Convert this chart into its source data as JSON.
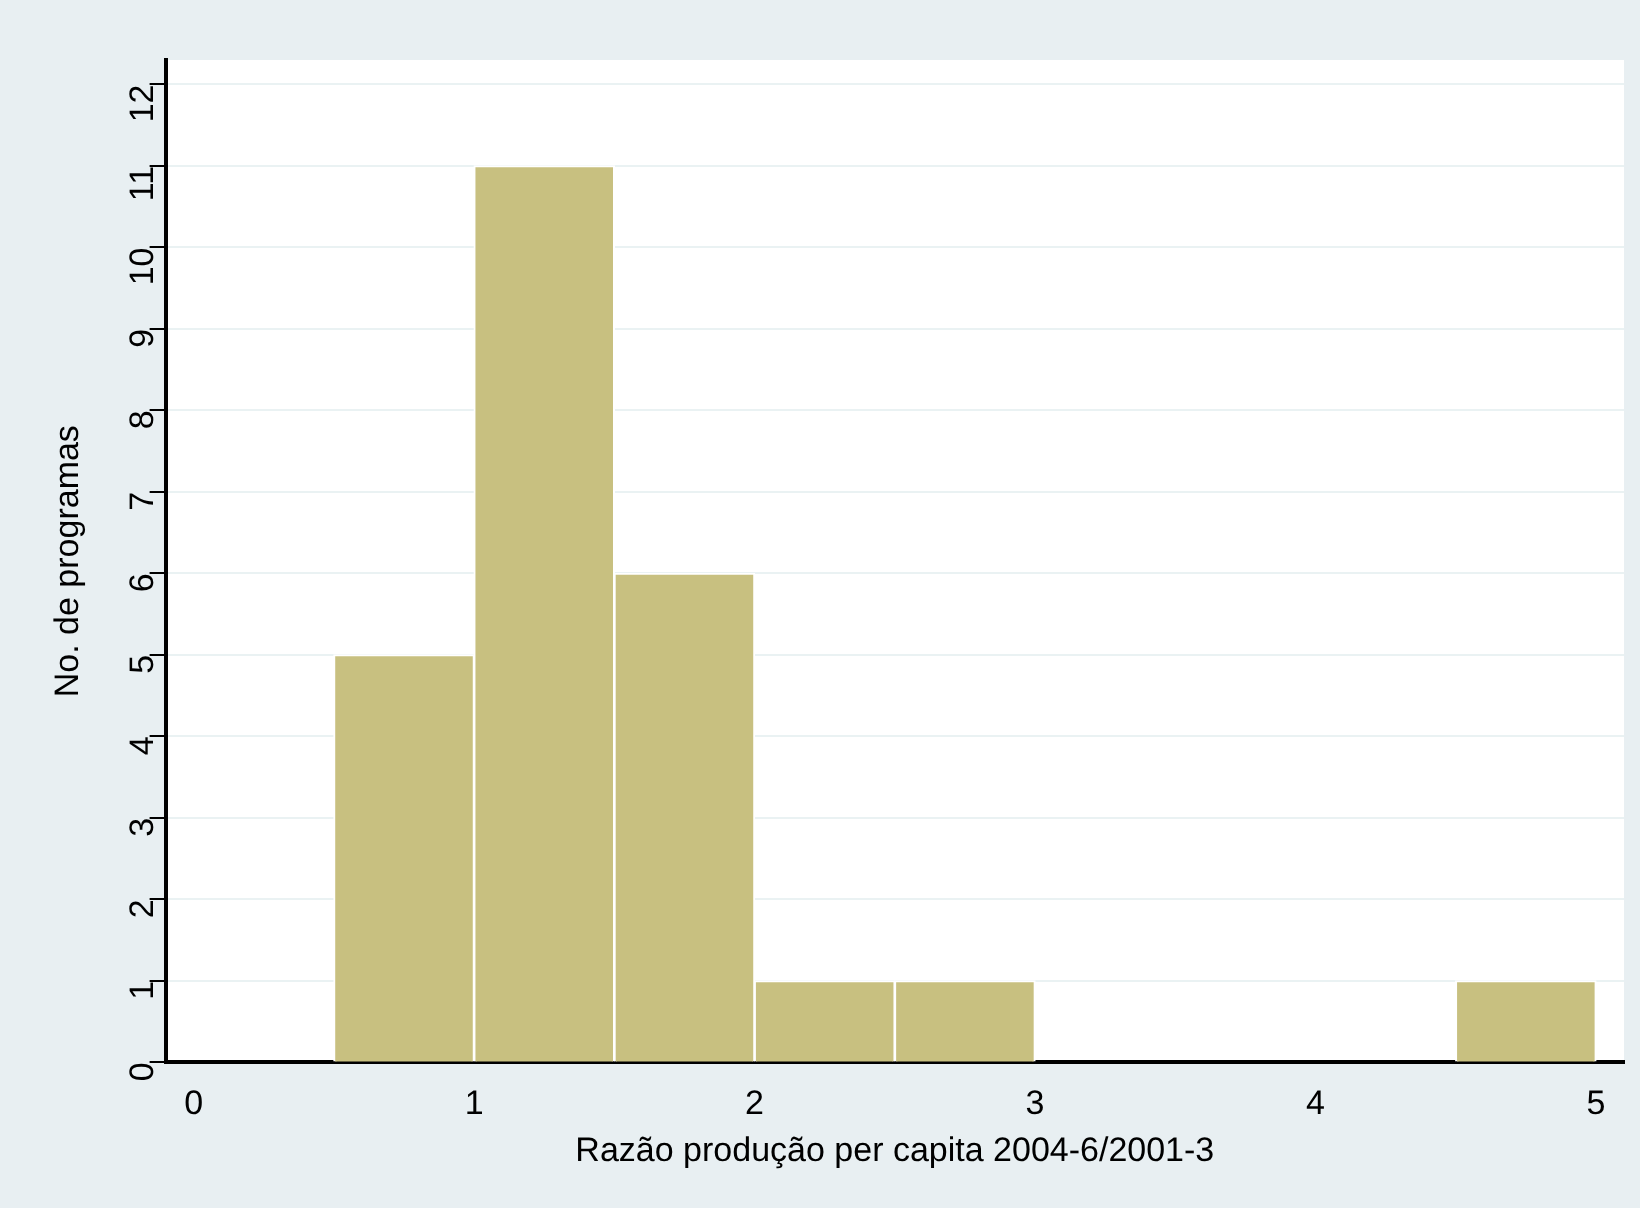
{
  "chart_data": {
    "type": "histogram",
    "xlabel": "Razão produção per capita 2004-6/2001-3",
    "ylabel": "No. de programas",
    "bins": [
      0.5,
      1,
      1.5,
      2,
      2.5,
      3,
      3.5,
      4,
      4.5,
      5
    ],
    "values": [
      5,
      11,
      6,
      1,
      1,
      0,
      0,
      0,
      1
    ],
    "color": "#c8c080",
    "xlim": [
      -0.1,
      5.1
    ],
    "xticks": [
      0,
      1,
      2,
      3,
      4,
      5
    ],
    "ylim": [
      0,
      12.3
    ],
    "yticks": [
      0,
      1,
      2,
      3,
      4,
      5,
      6,
      7,
      8,
      9,
      10,
      11,
      12
    ],
    "grid": "y",
    "legend": false
  }
}
